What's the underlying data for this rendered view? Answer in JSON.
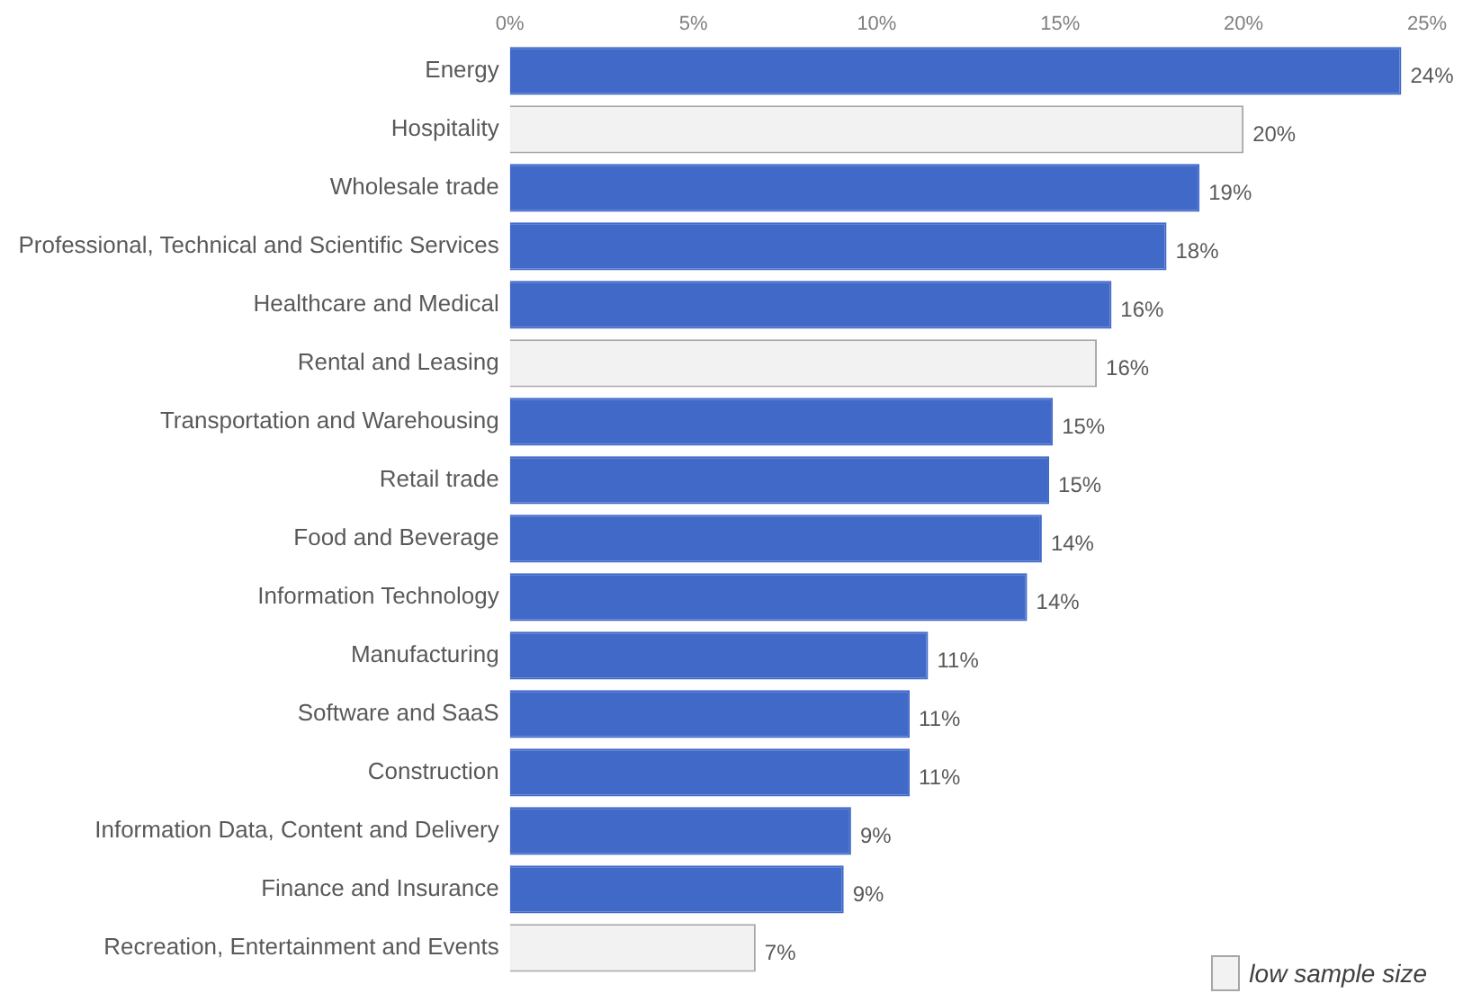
{
  "chart_data": {
    "type": "bar",
    "orientation": "horizontal",
    "categories": [
      "Energy",
      "Hospitality",
      "Wholesale trade",
      "Professional, Technical and Scientific Services",
      "Healthcare and Medical",
      "Rental and Leasing",
      "Transportation and Warehousing",
      "Retail trade",
      "Food and Beverage",
      "Information Technology",
      "Manufacturing",
      "Software and SaaS",
      "Construction",
      "Information Data, Content and Delivery",
      "Finance and Insurance",
      "Recreation, Entertainment and Events"
    ],
    "series": [
      {
        "color": "#4169c8",
        "values": [
          24.3,
          null,
          18.8,
          17.9,
          16.4,
          null,
          14.8,
          14.7,
          14.5,
          14.1,
          11.4,
          10.9,
          10.9,
          9.3,
          9.1,
          null
        ],
        "value_labels": [
          "24%",
          null,
          "19%",
          "18%",
          "16%",
          null,
          "15%",
          "15%",
          "14%",
          "14%",
          "11%",
          "11%",
          "11%",
          "9%",
          "9%",
          null
        ]
      },
      {
        "name": "low sample size",
        "color": "#f2f2f2",
        "values": [
          null,
          20.0,
          null,
          null,
          null,
          16.0,
          null,
          null,
          null,
          null,
          null,
          null,
          null,
          null,
          null,
          6.7
        ],
        "value_labels": [
          null,
          "20%",
          null,
          null,
          null,
          "16%",
          null,
          null,
          null,
          null,
          null,
          null,
          null,
          null,
          null,
          "7%"
        ]
      }
    ],
    "xlim": [
      0,
      25
    ],
    "xticks": [
      {
        "value": 0,
        "label": "0%"
      },
      {
        "value": 5,
        "label": "5%"
      },
      {
        "value": 10,
        "label": "10%"
      },
      {
        "value": 15,
        "label": "15%"
      },
      {
        "value": 20,
        "label": "20%"
      },
      {
        "value": 25,
        "label": "25%"
      }
    ],
    "grid": false,
    "legend": "bottom right"
  }
}
